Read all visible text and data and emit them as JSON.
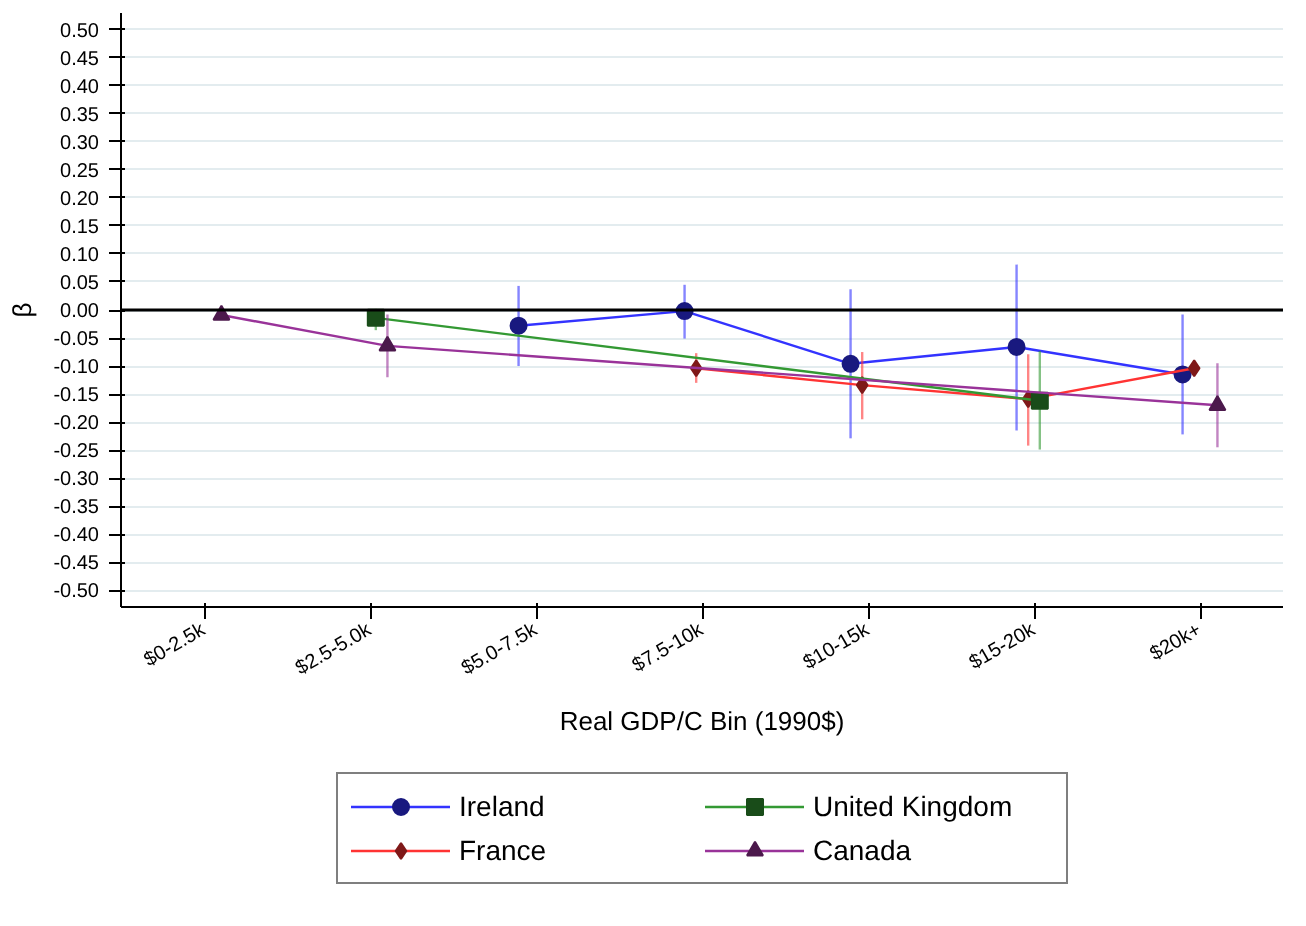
{
  "chart_data": {
    "type": "line",
    "xlabel": "Real GDP/C Bin (1990$)",
    "ylabel": "β",
    "categories": [
      "$0-2.5k",
      "$2.5-5.0k",
      "$5.0-7.5k",
      "$7.5-10k",
      "$10-15k",
      "$15-20k",
      "$20k+"
    ],
    "ylim": [
      -0.53,
      0.53
    ],
    "yticks": [
      {
        "value": 0.5,
        "label": "0.50"
      },
      {
        "value": 0.45,
        "label": "0.45"
      },
      {
        "value": 0.4,
        "label": "0.40"
      },
      {
        "value": 0.35,
        "label": "0.35"
      },
      {
        "value": 0.3,
        "label": "0.30"
      },
      {
        "value": 0.25,
        "label": "0.25"
      },
      {
        "value": 0.2,
        "label": "0.20"
      },
      {
        "value": 0.15,
        "label": "0.15"
      },
      {
        "value": 0.1,
        "label": "0.10"
      },
      {
        "value": 0.05,
        "label": "0.05"
      },
      {
        "value": 0,
        "label": "0.00"
      },
      {
        "value": -0.05,
        "label": "-0.05"
      },
      {
        "value": -0.1,
        "label": "-0.10"
      },
      {
        "value": -0.15,
        "label": "-0.15"
      },
      {
        "value": -0.2,
        "label": "-0.20"
      },
      {
        "value": -0.25,
        "label": "-0.25"
      },
      {
        "value": -0.3,
        "label": "-0.30"
      },
      {
        "value": -0.35,
        "label": "-0.35"
      },
      {
        "value": -0.4,
        "label": "-0.40"
      },
      {
        "value": -0.45,
        "label": "-0.45"
      },
      {
        "value": -0.5,
        "label": "-0.50"
      }
    ],
    "grid": "y",
    "legend": "bottom",
    "ref_lines": [
      {
        "axis": "y",
        "value": 0,
        "color": "#000000"
      }
    ],
    "series": [
      {
        "name": "Ireland",
        "color": "#3333ff",
        "marker": "circle",
        "values": [
          null,
          null,
          -0.028,
          -0.002,
          -0.096,
          -0.066,
          -0.115
        ],
        "errors": [
          null,
          null,
          [
            -0.1,
            0.043
          ],
          [
            -0.051,
            0.045
          ],
          [
            -0.229,
            0.037
          ],
          [
            -0.215,
            0.081
          ],
          [
            -0.222,
            -0.008
          ]
        ]
      },
      {
        "name": "France",
        "color": "#ff3333",
        "marker": "diamond",
        "values": [
          null,
          null,
          null,
          -0.104,
          -0.134,
          -0.159,
          -0.104
        ],
        "errors": [
          null,
          null,
          null,
          [
            -0.13,
            -0.077
          ],
          [
            -0.195,
            -0.075
          ],
          [
            -0.242,
            -0.079
          ],
          null
        ]
      },
      {
        "name": "United Kingdom",
        "color": "#339933",
        "marker": "square",
        "values": [
          null,
          -0.014,
          null,
          null,
          null,
          -0.162,
          null
        ],
        "errors": [
          null,
          [
            -0.036,
            0.002
          ],
          null,
          null,
          null,
          [
            -0.249,
            -0.073
          ],
          null
        ]
      },
      {
        "name": "Canada",
        "color": "#993399",
        "marker": "triangle",
        "values": [
          -0.009,
          -0.064,
          null,
          null,
          null,
          null,
          -0.17
        ],
        "errors": [
          null,
          [
            -0.12,
            -0.008
          ],
          null,
          null,
          null,
          null,
          [
            -0.245,
            -0.095
          ]
        ]
      }
    ]
  }
}
